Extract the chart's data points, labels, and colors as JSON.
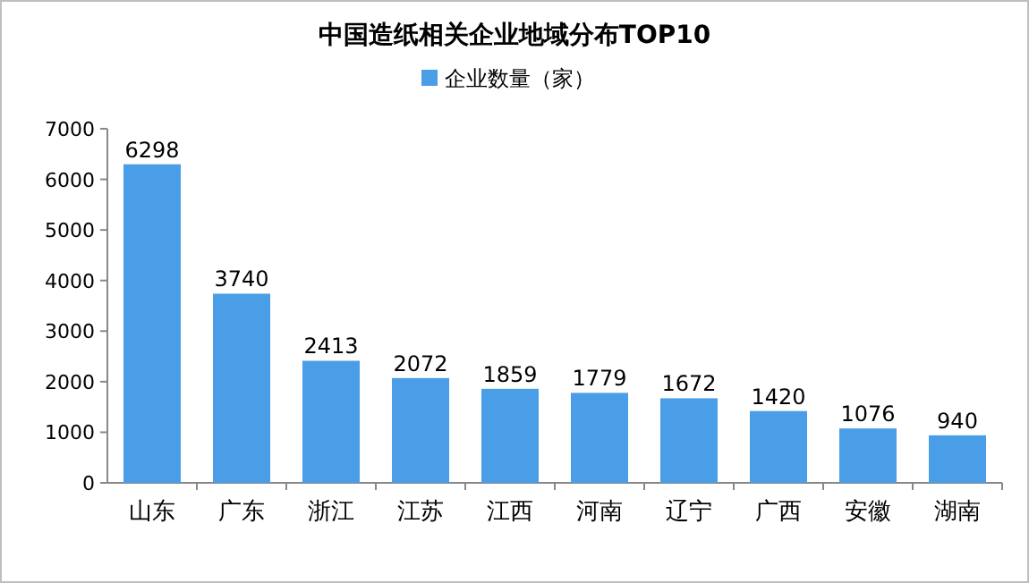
{
  "chart_data": {
    "type": "bar",
    "title": "中国造纸相关企业地域分布TOP10",
    "categories": [
      "山东",
      "广东",
      "浙江",
      "江苏",
      "江西",
      "河南",
      "辽宁",
      "广西",
      "安徽",
      "湖南"
    ],
    "series": [
      {
        "name": "企业数量（家）",
        "color": "#4a9ee8",
        "values": [
          6298,
          3740,
          2413,
          2072,
          1859,
          1779,
          1672,
          1420,
          1076,
          940
        ]
      }
    ],
    "ylim": [
      0,
      7000
    ],
    "yticks": [
      0,
      1000,
      2000,
      3000,
      4000,
      5000,
      6000,
      7000
    ],
    "data_labels": true,
    "legend": "top"
  }
}
